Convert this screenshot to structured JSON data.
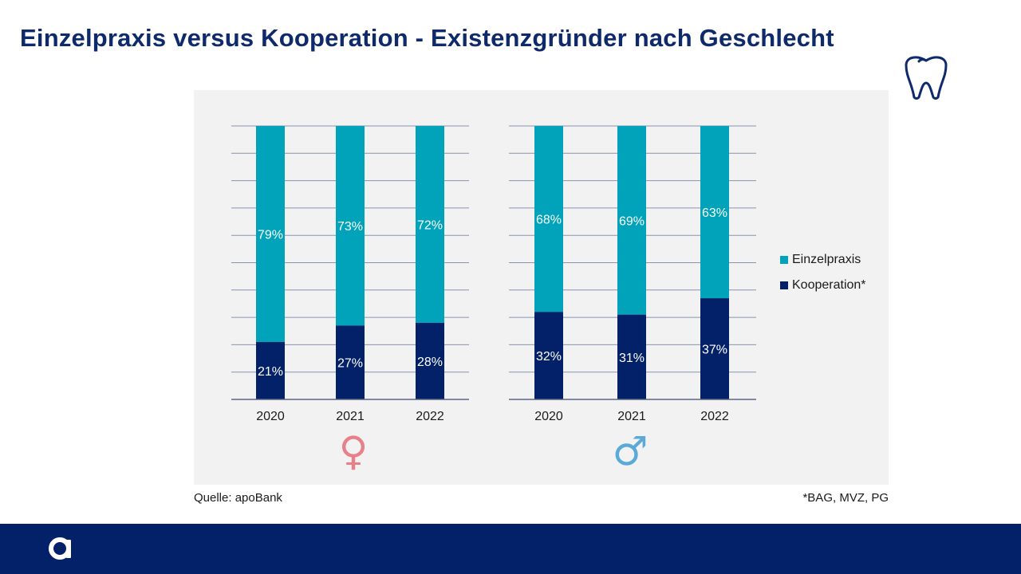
{
  "title": "Einzelpraxis versus Kooperation - Existenzgründer nach Geschlecht",
  "icons": {
    "top_right": "tooth-icon",
    "footer_logo": "apobank-logo-icon"
  },
  "colors": {
    "einzelpraxis": "#00a3b9",
    "kooperation": "#032169",
    "female_symbol": "#e8808a",
    "male_symbol": "#5aaad9",
    "panel": "#f2f2f2",
    "title": "#0e2a6b"
  },
  "chart_data": [
    {
      "type": "bar",
      "stacked": true,
      "group": "female",
      "group_symbol": "♀",
      "categories": [
        "2020",
        "2021",
        "2022"
      ],
      "series": [
        {
          "name": "Kooperation*",
          "values": [
            21,
            27,
            28
          ],
          "labels": [
            "21%",
            "27%",
            "28%"
          ]
        },
        {
          "name": "Einzelpraxis",
          "values": [
            79,
            73,
            72
          ],
          "labels": [
            "79%",
            "73%",
            "72%"
          ]
        }
      ],
      "ylim": [
        0,
        100
      ],
      "grid": true
    },
    {
      "type": "bar",
      "stacked": true,
      "group": "male",
      "group_symbol": "♂",
      "categories": [
        "2020",
        "2021",
        "2022"
      ],
      "series": [
        {
          "name": "Kooperation*",
          "values": [
            32,
            31,
            37
          ],
          "labels": [
            "32%",
            "31%",
            "37%"
          ]
        },
        {
          "name": "Einzelpraxis",
          "values": [
            68,
            69,
            63
          ],
          "labels": [
            "68%",
            "69%",
            "63%"
          ]
        }
      ],
      "ylim": [
        0,
        100
      ],
      "grid": true
    }
  ],
  "legend": {
    "einzelpraxis": "Einzelpraxis",
    "kooperation": "Kooperation*"
  },
  "source": "Quelle: apoBank",
  "footnote": "*BAG, MVZ, PG"
}
